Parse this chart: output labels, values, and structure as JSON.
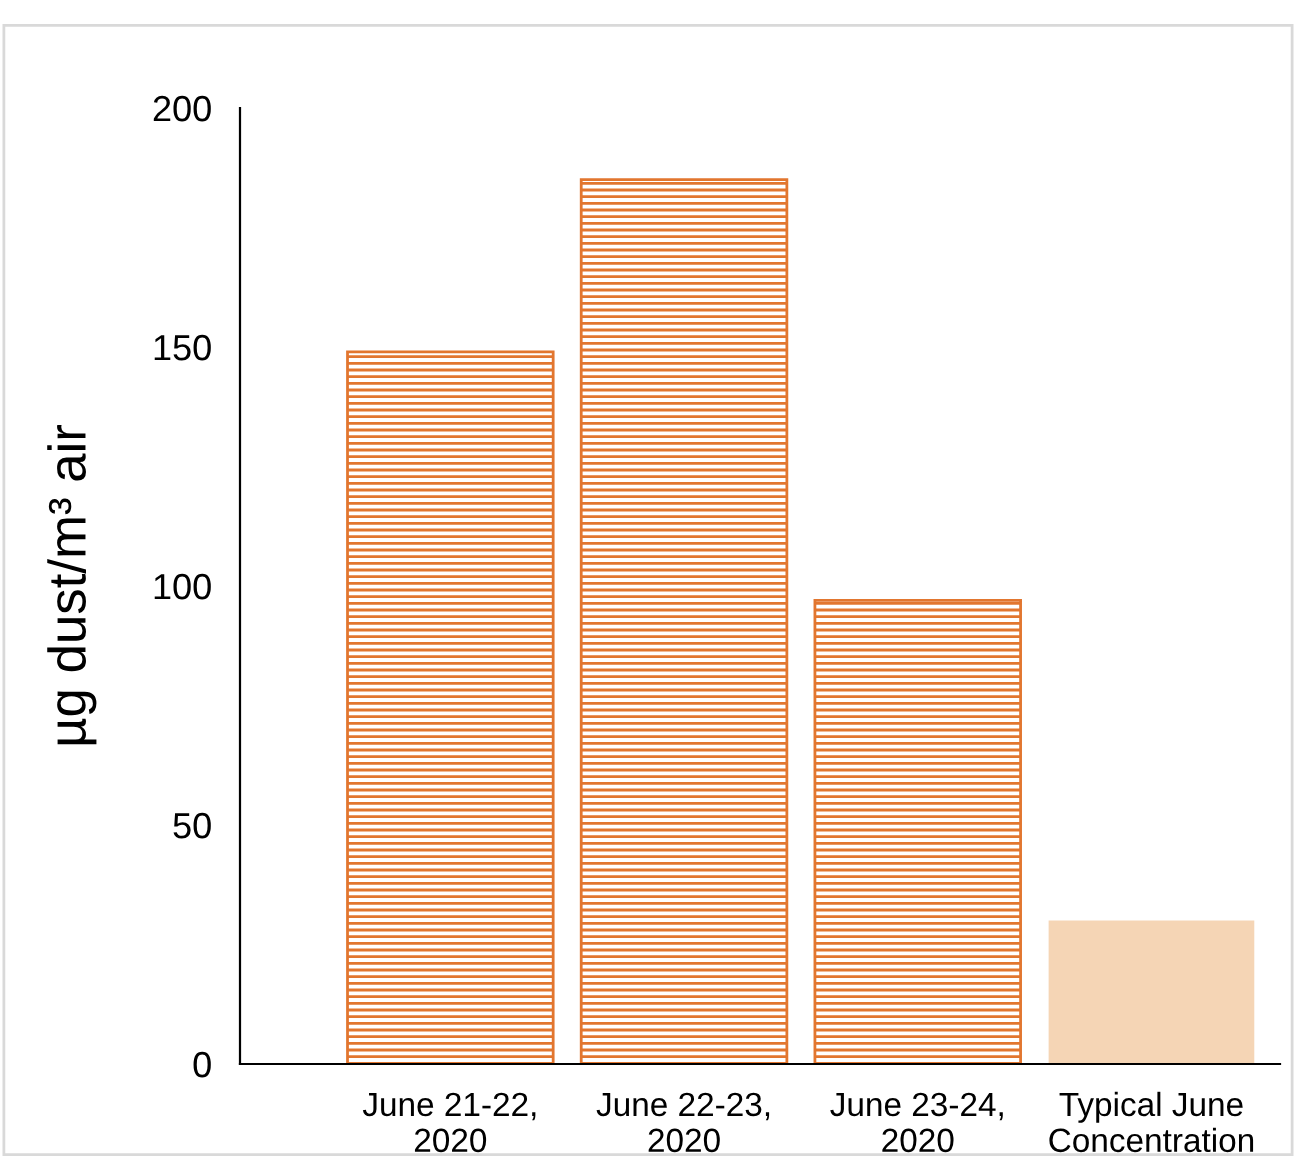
{
  "chart_data": {
    "type": "bar",
    "ylabel": "µg dust/m³ air",
    "categories": [
      "June 21-22,\n2020",
      "June 22-23,\n2020",
      "June 23-24,\n2020",
      "Typical June\nConcentration"
    ],
    "values": [
      149,
      185,
      97,
      30
    ],
    "colors": [
      "#e2762f",
      "#e2762f",
      "#e2762f",
      "#f5d5b5"
    ],
    "ylim": [
      0,
      200
    ],
    "yticks": [
      0,
      50,
      100,
      150,
      200
    ],
    "grid": false,
    "legend": false
  }
}
